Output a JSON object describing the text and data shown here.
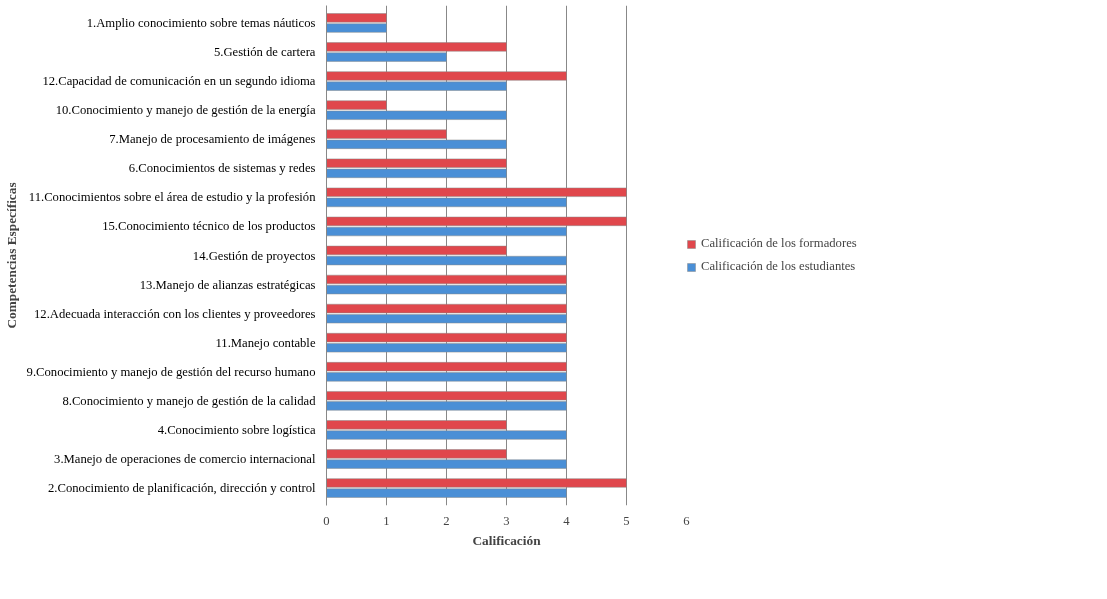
{
  "chart_data": {
    "type": "bar",
    "orientation": "horizontal",
    "xlabel": "Calificación",
    "ylabel": "Competencias Específicas",
    "categories": [
      "1.Amplio conocimiento sobre temas náuticos",
      "5.Gestión de cartera",
      "12.Capacidad de comunicación en un segundo idioma",
      "10.Conocimiento y manejo de gestión de la energía",
      "7.Manejo de procesamiento de imágenes",
      "6.Conocimientos de sistemas y redes",
      "11.Conocimientos sobre el área de estudio y la profesión",
      "15.Conocimiento técnico de los productos",
      "14.Gestión de proyectos",
      "13.Manejo de alianzas estratégicas",
      "12.Adecuada interacción con los clientes y proveedores",
      "11.Manejo contable",
      "9.Conocimiento y manejo de gestión del recurso humano",
      "8.Conocimiento y manejo de gestión de la calidad",
      "4.Conocimiento sobre logística",
      "3.Manejo de operaciones de comercio internacional",
      "2.Conocimiento de planificación, dirección y control"
    ],
    "series": [
      {
        "name": "Calificación de los formadores",
        "color": "#e0474c",
        "values": [
          1,
          3,
          4,
          1,
          2,
          3,
          5,
          5,
          3,
          4,
          4,
          4,
          4,
          4,
          3,
          3,
          5
        ]
      },
      {
        "name": "Calificación de los estudiantes",
        "color": "#4a8fd6",
        "values": [
          1,
          2,
          3,
          3,
          3,
          3,
          4,
          4,
          4,
          4,
          4,
          4,
          4,
          4,
          4,
          4,
          4
        ]
      }
    ],
    "xlim": [
      0,
      6
    ],
    "xticks": [
      0,
      1,
      2,
      3,
      4,
      5,
      6
    ],
    "grid": "x",
    "legend": "right"
  }
}
